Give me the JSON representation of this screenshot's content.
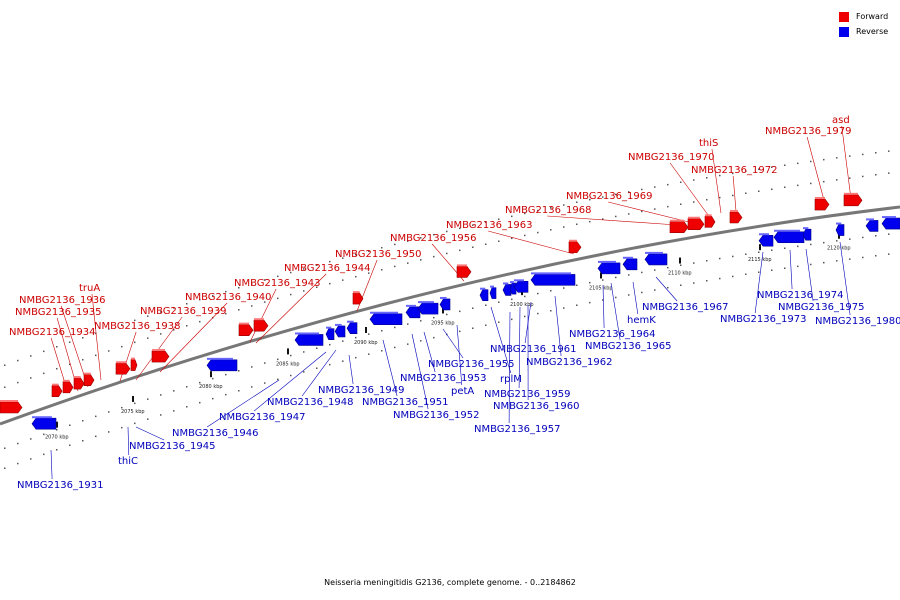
{
  "legend": {
    "forward_label": "Forward",
    "reverse_label": "Reverse",
    "forward_color": "#ee0000",
    "reverse_color": "#0000ee"
  },
  "caption": "Neisseria meningitidis G2136, complete genome. - 0..2184862",
  "ticks": [
    "2070 kbp",
    "2075 kbp",
    "2080 kbp",
    "2085 kbp",
    "2090 kbp",
    "2095 kbp",
    "2100 kbp",
    "2105 kbp",
    "2110 kbp",
    "2115 kbp",
    "2120 kbp"
  ],
  "forward_labels": [
    "truA",
    "NMBG2136_1936",
    "NMBG2136_1935",
    "NMBG2136_1934",
    "NMBG2136_1938",
    "NMBG2136_1939",
    "NMBG2136_1940",
    "NMBG2136_1943",
    "NMBG2136_1944",
    "NMBG2136_1950",
    "NMBG2136_1956",
    "NMBG2136_1963",
    "NMBG2136_1968",
    "NMBG2136_1969",
    "NMBG2136_1970",
    "thiS",
    "NMBG2136_1972",
    "NMBG2136_1979",
    "asd"
  ],
  "reverse_labels": [
    "NMBG2136_1931",
    "thiC",
    "NMBG2136_1945",
    "NMBG2136_1946",
    "NMBG2136_1947",
    "NMBG2136_1948",
    "NMBG2136_1949",
    "NMBG2136_1951",
    "NMBG2136_1952",
    "NMBG2136_1953",
    "NMBG2136_1955",
    "petA",
    "rplM",
    "NMBG2136_1957",
    "NMBG2136_1959",
    "NMBG2136_1960",
    "NMBG2136_1961",
    "NMBG2136_1962",
    "NMBG2136_1964",
    "NMBG2136_1965",
    "hemK",
    "NMBG2136_1967",
    "NMBG2136_1973",
    "NMBG2136_1974",
    "NMBG2136_1975",
    "NMBG2136_1980"
  ]
}
